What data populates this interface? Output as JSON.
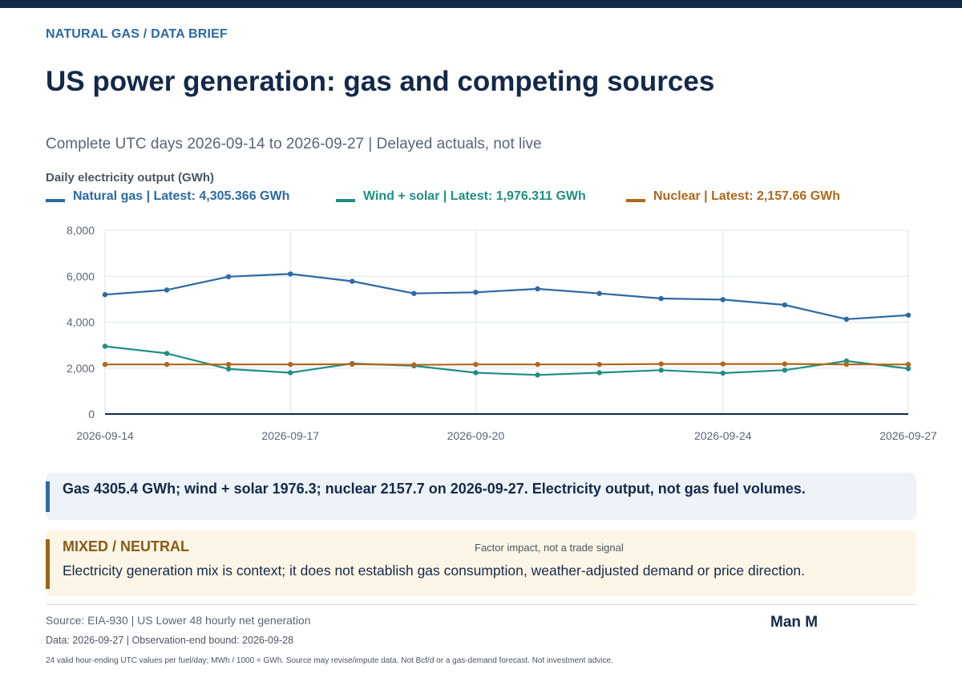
{
  "kicker": "NATURAL GAS / DATA BRIEF",
  "title": "US power generation: gas and competing sources",
  "subtitle": "Complete UTC days 2026-09-14 to 2026-09-27 | Delayed actuals, not live",
  "chart_label": "Daily electricity output (GWh)",
  "colors": {
    "gas": "#2b6aa3",
    "renew": "#1f8f86",
    "nuclear": "#b0671c",
    "axis": "#13294b",
    "grid": "#dbe6ef",
    "tick": "#5a6675"
  },
  "legend": [
    {
      "label": "Natural gas | Latest: 4,305.366 GWh",
      "color": "#2b6aa3"
    },
    {
      "label": "Wind + solar | Latest: 1,976.311 GWh",
      "color": "#1f8f86"
    },
    {
      "label": "Nuclear | Latest: 2,157.66 GWh",
      "color": "#b0671c"
    }
  ],
  "chart_data": {
    "type": "line",
    "ylabel": "",
    "xlabel": "",
    "ylim": [
      0,
      8000
    ],
    "yticks": [
      0,
      2000,
      4000,
      6000,
      8000
    ],
    "ytick_labels": [
      "0",
      "2,000",
      "4,000",
      "6,000",
      "8,000"
    ],
    "x": [
      "2026-09-14",
      "2026-09-15",
      "2026-09-16",
      "2026-09-17",
      "2026-09-18",
      "2026-09-19",
      "2026-09-20",
      "2026-09-21",
      "2026-09-22",
      "2026-09-23",
      "2026-09-24",
      "2026-09-25",
      "2026-09-26",
      "2026-09-27"
    ],
    "xtick_labels": [
      "2026-09-14",
      "2026-09-17",
      "2026-09-20",
      "2026-09-24",
      "2026-09-27"
    ],
    "grid": true,
    "series": [
      {
        "name": "Natural gas",
        "color": "#2b6aa3",
        "values": [
          5200,
          5400,
          5980,
          6100,
          5780,
          5250,
          5300,
          5450,
          5250,
          5030,
          4980,
          4750,
          4130,
          4305
        ]
      },
      {
        "name": "Wind + solar",
        "color": "#1f8f86",
        "values": [
          2950,
          2640,
          1960,
          1800,
          2200,
          2100,
          1800,
          1700,
          1800,
          1910,
          1780,
          1910,
          2310,
          1976
        ]
      },
      {
        "name": "Nuclear",
        "color": "#b0671c",
        "values": [
          2160,
          2160,
          2160,
          2160,
          2170,
          2140,
          2160,
          2160,
          2160,
          2180,
          2180,
          2180,
          2160,
          2158
        ]
      }
    ]
  },
  "callout": "Gas 4305.4 GWh; wind + solar 1976.3; nuclear 2157.7 on 2026-09-27. Electricity output, not gas fuel volumes.",
  "verdict": {
    "label": "MIXED / NEUTRAL",
    "note": "Factor impact, not a trade signal",
    "text": "Electricity generation mix is context; it does not establish gas consumption, weather-adjusted demand or price direction."
  },
  "footer": {
    "source": "Source: EIA-930 | US Lower 48 hourly net generation",
    "brand": "Man M",
    "dataline": "Data: 2026-09-27 | Observation-end bound: 2026-09-28",
    "footnote": "24 valid hour-ending UTC values per fuel/day; MWh / 1000 = GWh. Source may revise/impute data. Not Bcf/d or a gas-demand forecast. Not investment advice."
  }
}
